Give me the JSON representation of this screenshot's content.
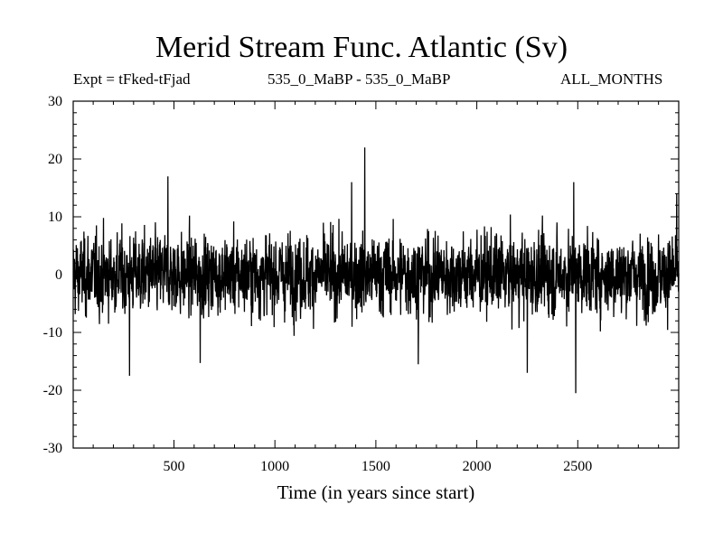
{
  "header": {
    "title": "Merid Stream Func. Atlantic (Sv)",
    "expt": "Expt = tFked-tFjad",
    "period": "535_0_MaBP - 535_0_MaBP",
    "months": "ALL_MONTHS"
  },
  "chart_data": {
    "type": "line",
    "xlabel": "Time (in years since start)",
    "ylabel": "",
    "xlim": [
      1,
      3000
    ],
    "ylim": [
      -30,
      30
    ],
    "xticks": [
      500,
      1000,
      1500,
      2000,
      2500
    ],
    "yticks": [
      30,
      20,
      10,
      0,
      -10,
      -20,
      -30
    ],
    "grid": false,
    "series": [
      {
        "n_points": 3000,
        "color": "#000000",
        "typical_range": [
          -12,
          12
        ],
        "peaks": [
          {
            "x": 1445,
            "y": 22
          },
          {
            "x": 1380,
            "y": 16
          },
          {
            "x": 470,
            "y": 17
          },
          {
            "x": 2480,
            "y": 16
          },
          {
            "x": 2990,
            "y": 14
          },
          {
            "x": 280,
            "y": -17.5
          },
          {
            "x": 2250,
            "y": -17
          },
          {
            "x": 2490,
            "y": -20.5
          },
          {
            "x": 1710,
            "y": -15.5
          },
          {
            "x": 630,
            "y": -15.3
          }
        ]
      }
    ]
  }
}
